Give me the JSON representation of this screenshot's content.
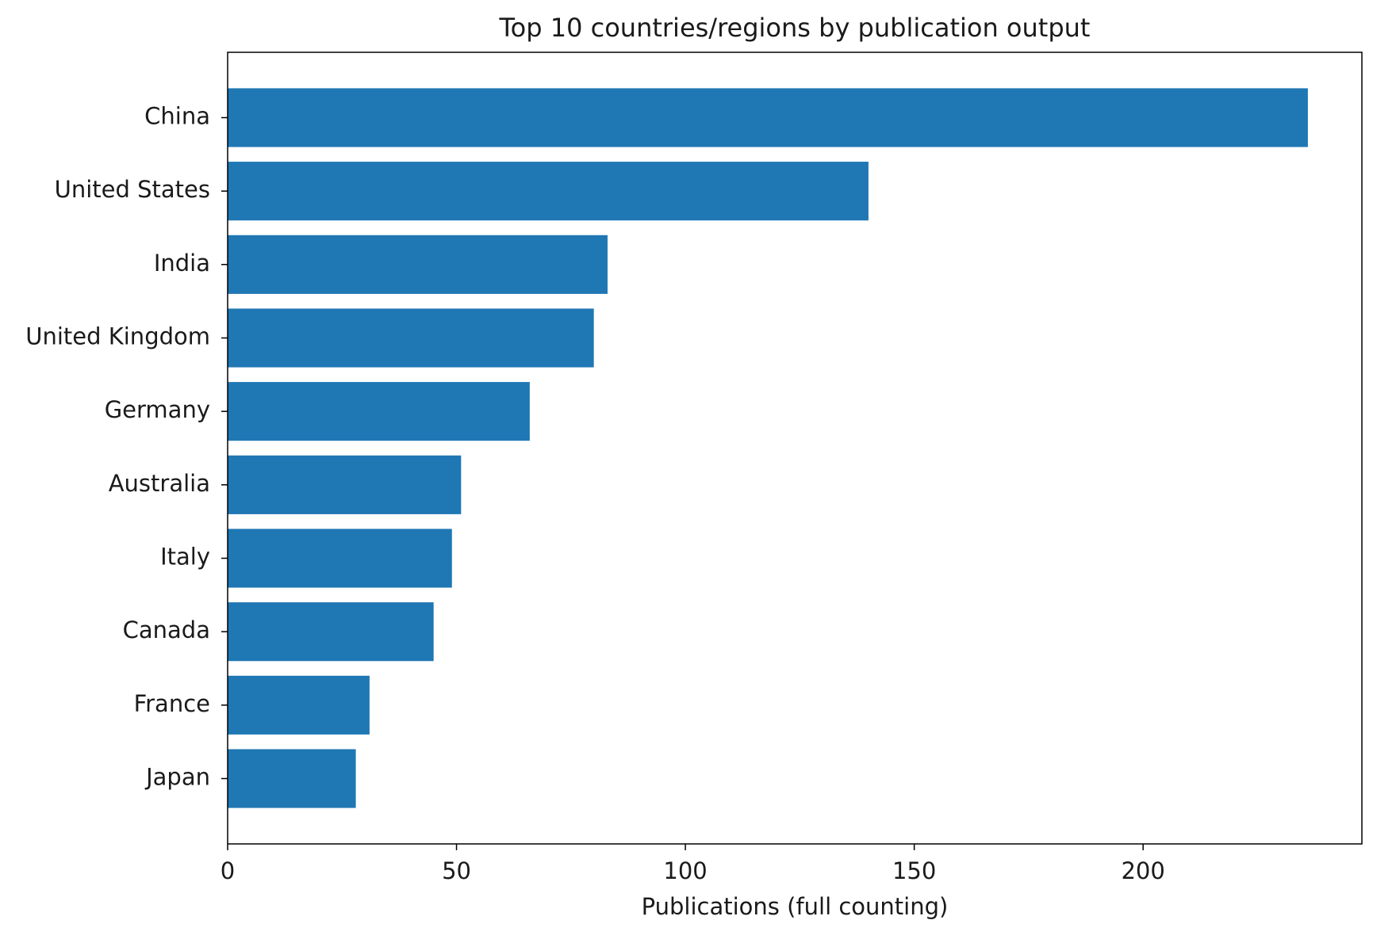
{
  "chart_data": {
    "type": "bar",
    "orientation": "horizontal",
    "title": "Top 10 countries/regions by publication output",
    "x_label": "Publications (full counting)",
    "categories": [
      "China",
      "United States",
      "India",
      "United Kingdom",
      "Germany",
      "Australia",
      "Italy",
      "Canada",
      "France",
      "Japan"
    ],
    "values": [
      236,
      140,
      83,
      80,
      66,
      51,
      49,
      45,
      31,
      28
    ],
    "color": "#1f77b4",
    "xlim": [
      0,
      247.8
    ],
    "xticks": [
      0,
      50,
      100,
      150,
      200
    ],
    "grid": false
  }
}
